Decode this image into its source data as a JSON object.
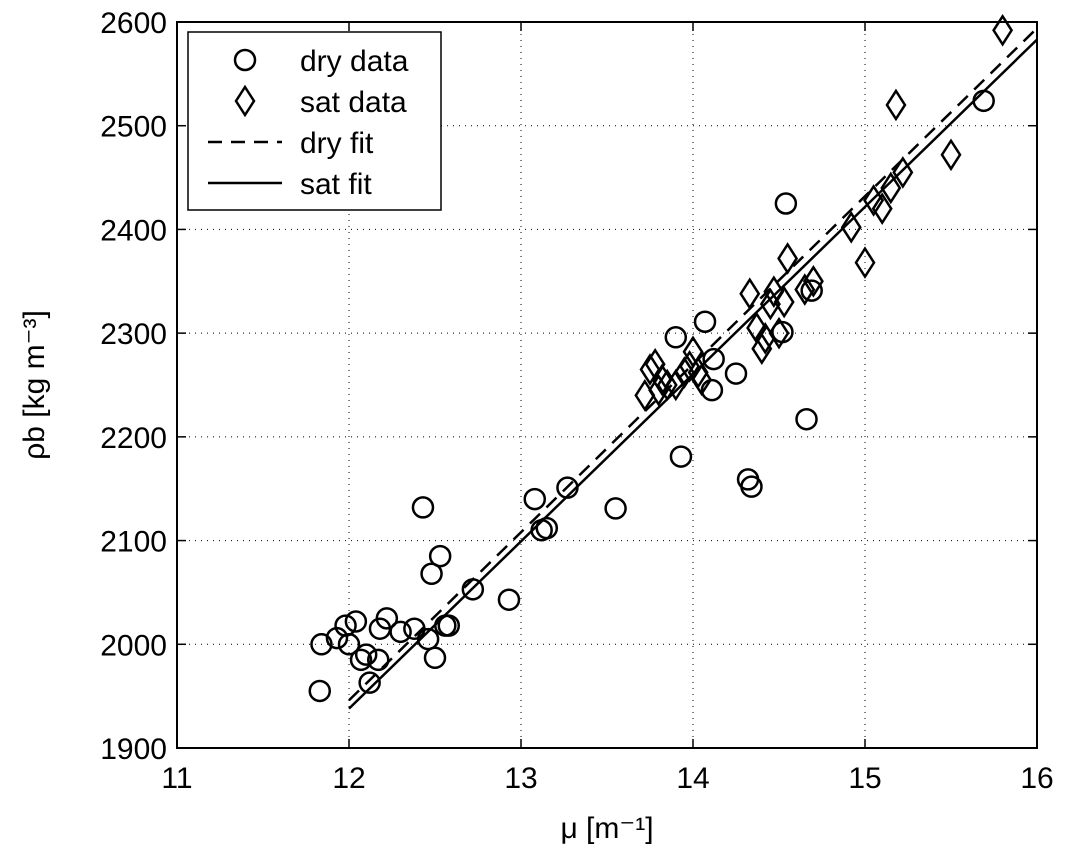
{
  "chart_data": {
    "type": "scatter",
    "xlabel": "μ [m⁻¹]",
    "ylabel": "ρb [kg m⁻³]",
    "xlim": [
      11,
      16
    ],
    "ylim": [
      1900,
      2600
    ],
    "xticks": [
      11,
      12,
      13,
      14,
      15,
      16
    ],
    "yticks": [
      1900,
      2000,
      2100,
      2200,
      2300,
      2400,
      2500,
      2600
    ],
    "grid": true,
    "legend_position": "top-left",
    "legend": [
      {
        "label": "dry data",
        "marker": "circle"
      },
      {
        "label": "sat data",
        "marker": "diamond"
      },
      {
        "label": "dry fit",
        "line": "dashed"
      },
      {
        "label": "sat fit",
        "line": "solid"
      }
    ],
    "series": [
      {
        "name": "dry data",
        "marker": "circle",
        "x": [
          11.84,
          11.83,
          11.93,
          11.98,
          12.0,
          12.04,
          12.07,
          12.1,
          12.12,
          12.17,
          12.18,
          12.22,
          12.3,
          12.38,
          12.43,
          12.46,
          12.48,
          12.5,
          12.53,
          12.56,
          12.58,
          12.72,
          12.93,
          13.08,
          13.12,
          13.15,
          13.27,
          13.55,
          13.9,
          13.93,
          14.07,
          14.11,
          14.12,
          14.25,
          14.32,
          14.34,
          14.52,
          14.54,
          14.66,
          14.69,
          15.69
        ],
        "y": [
          2000,
          1955,
          2006,
          2018,
          2000,
          2022,
          1985,
          1990,
          1963,
          1985,
          2015,
          2025,
          2012,
          2015,
          2132,
          2005,
          2068,
          1987,
          2085,
          2018,
          2018,
          2053,
          2043,
          2140,
          2110,
          2112,
          2151,
          2131,
          2296,
          2181,
          2311,
          2245,
          2275,
          2261,
          2159,
          2152,
          2301,
          2425,
          2217,
          2341,
          2524
        ]
      },
      {
        "name": "sat data",
        "marker": "diamond",
        "x": [
          13.72,
          13.75,
          13.78,
          13.8,
          13.82,
          13.85,
          13.9,
          13.95,
          13.98,
          14.0,
          14.03,
          14.05,
          14.33,
          14.37,
          14.4,
          14.42,
          14.45,
          14.47,
          14.5,
          14.53,
          14.55,
          14.65,
          14.7,
          14.92,
          15.0,
          15.05,
          15.1,
          15.15,
          15.18,
          15.22,
          15.5,
          15.8
        ],
        "y": [
          2240,
          2265,
          2270,
          2245,
          2255,
          2250,
          2250,
          2262,
          2268,
          2282,
          2262,
          2255,
          2338,
          2305,
          2285,
          2295,
          2328,
          2340,
          2300,
          2330,
          2372,
          2342,
          2350,
          2402,
          2368,
          2428,
          2420,
          2440,
          2520,
          2455,
          2472,
          2592
        ]
      }
    ],
    "fits": [
      {
        "name": "dry fit",
        "style": "dashed",
        "x": [
          12.0,
          16.0
        ],
        "y": [
          1946,
          2594
        ]
      },
      {
        "name": "sat fit",
        "style": "solid",
        "x": [
          12.0,
          16.0
        ],
        "y": [
          1938,
          2583
        ]
      }
    ]
  }
}
